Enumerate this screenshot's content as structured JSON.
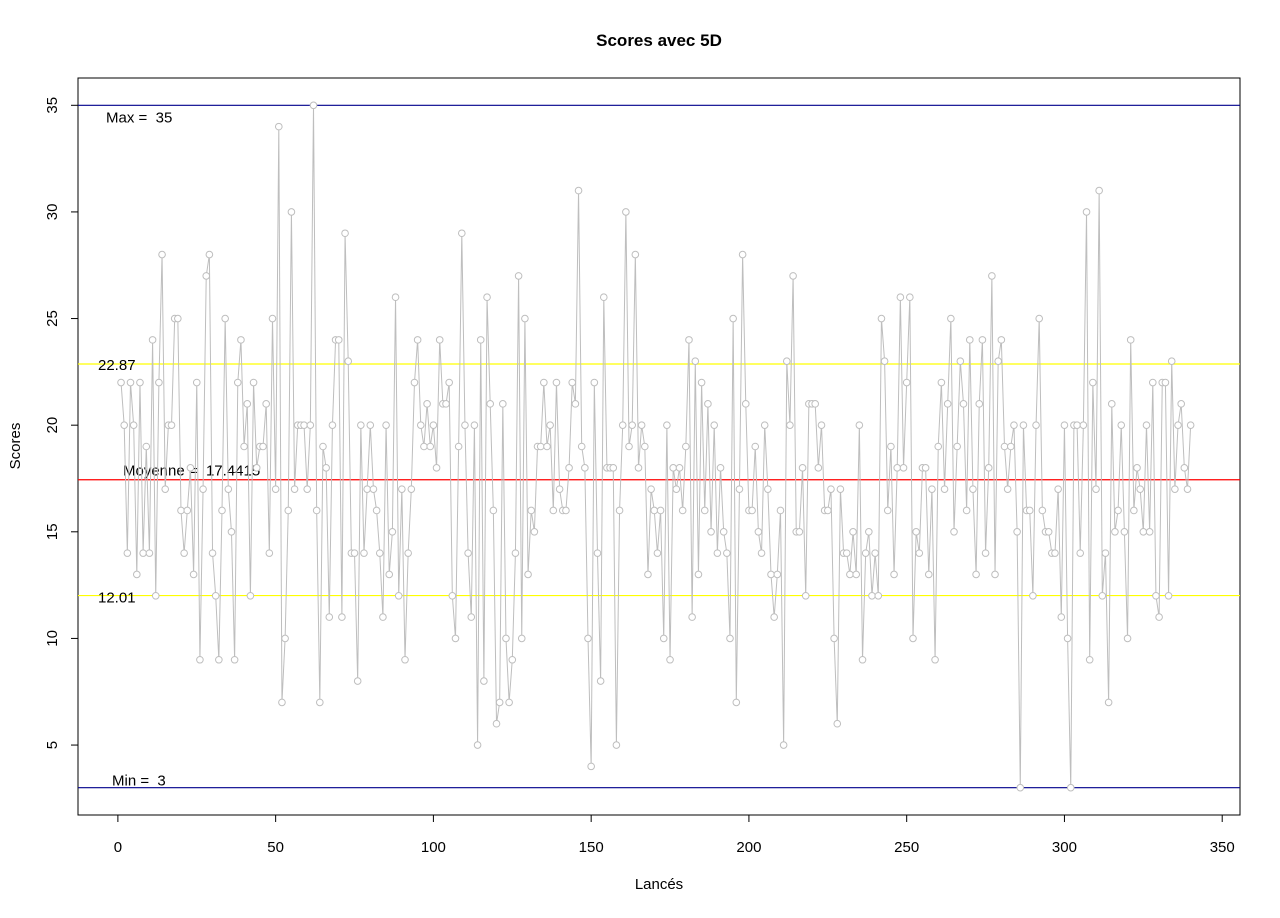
{
  "chart_data": {
    "type": "line",
    "title": "Scores avec 5D",
    "xlabel": "Lancés",
    "ylabel": "Scores",
    "color": "#bebebe",
    "x": [
      1,
      2,
      3,
      4,
      5,
      6,
      7,
      8,
      9,
      10,
      11,
      12,
      13,
      14,
      15,
      16,
      17,
      18,
      19,
      20,
      21,
      22,
      23,
      24,
      25,
      26,
      27,
      28,
      29,
      30,
      31,
      32,
      33,
      34,
      35,
      36,
      37,
      38,
      39,
      40,
      41,
      42,
      43,
      44,
      45,
      46,
      47,
      48,
      49,
      50,
      51,
      52,
      53,
      54,
      55,
      56,
      57,
      58,
      59,
      60,
      61,
      62,
      63,
      64,
      65,
      66,
      67,
      68,
      69,
      70,
      71,
      72,
      73,
      74,
      75,
      76,
      77,
      78,
      79,
      80,
      81,
      82,
      83,
      84,
      85,
      86,
      87,
      88,
      89,
      90,
      91,
      92,
      93,
      94,
      95,
      96,
      97,
      98,
      99,
      100,
      101,
      102,
      103,
      104,
      105,
      106,
      107,
      108,
      109,
      110,
      111,
      112,
      113,
      114,
      115,
      116,
      117,
      118,
      119,
      120,
      121,
      122,
      123,
      124,
      125,
      126,
      127,
      128,
      129,
      130,
      131,
      132,
      133,
      134,
      135,
      136,
      137,
      138,
      139,
      140,
      141,
      142,
      143,
      144,
      145,
      146,
      147,
      148,
      149,
      150,
      151,
      152,
      153,
      154,
      155,
      156,
      157,
      158,
      159,
      160,
      161,
      162,
      163,
      164,
      165,
      166,
      167,
      168,
      169,
      170,
      171,
      172,
      173,
      174,
      175,
      176,
      177,
      178,
      179,
      180,
      181,
      182,
      183,
      184,
      185,
      186,
      187,
      188,
      189,
      190,
      191,
      192,
      193,
      194,
      195,
      196,
      197,
      198,
      199,
      200,
      201,
      202,
      203,
      204,
      205,
      206,
      207,
      208,
      209,
      210,
      211,
      212,
      213,
      214,
      215,
      216,
      217,
      218,
      219,
      220,
      221,
      222,
      223,
      224,
      225,
      226,
      227,
      228,
      229,
      230,
      231,
      232,
      233,
      234,
      235,
      236,
      237,
      238,
      239,
      240,
      241,
      242,
      243,
      244,
      245,
      246,
      247,
      248,
      249,
      250,
      251,
      252,
      253,
      254,
      255,
      256,
      257,
      258,
      259,
      260,
      261,
      262,
      263,
      264,
      265,
      266,
      267,
      268,
      269,
      270,
      271,
      272,
      273,
      274,
      275,
      276,
      277,
      278,
      279,
      280,
      281,
      282,
      283,
      284,
      285,
      286,
      287,
      288,
      289,
      290,
      291,
      292,
      293,
      294,
      295,
      296,
      297,
      298,
      299,
      300,
      301,
      302,
      303,
      304,
      305,
      306,
      307,
      308,
      309,
      310,
      311,
      312,
      313,
      314,
      315,
      316,
      317,
      318,
      319,
      320,
      321,
      322,
      323,
      324,
      325,
      326,
      327,
      328,
      329,
      330,
      331,
      332,
      333,
      334,
      335,
      336,
      337,
      338,
      339,
      340
    ],
    "values": [
      22,
      20,
      14,
      22,
      20,
      13,
      22,
      14,
      19,
      14,
      24,
      12,
      22,
      28,
      17,
      20,
      20,
      25,
      25,
      16,
      14,
      16,
      18,
      13,
      22,
      9,
      17,
      27,
      28,
      14,
      12,
      9,
      16,
      25,
      17,
      15,
      9,
      22,
      24,
      19,
      21,
      12,
      22,
      18,
      19,
      19,
      21,
      14,
      25,
      17,
      34,
      7,
      10,
      16,
      30,
      17,
      20,
      20,
      20,
      17,
      20,
      35,
      16,
      7,
      19,
      18,
      11,
      20,
      24,
      24,
      11,
      29,
      23,
      14,
      14,
      8,
      20,
      14,
      17,
      20,
      17,
      16,
      14,
      11,
      20,
      13,
      15,
      26,
      12,
      17,
      9,
      14,
      17,
      22,
      24,
      20,
      19,
      21,
      19,
      20,
      18,
      24,
      21,
      21,
      22,
      12,
      10,
      19,
      29,
      20,
      14,
      11,
      20,
      5,
      24,
      8,
      26,
      21,
      16,
      6,
      7,
      21,
      10,
      7,
      9,
      14,
      27,
      10,
      25,
      13,
      16,
      15,
      19,
      19,
      22,
      19,
      20,
      16,
      22,
      17,
      16,
      16,
      18,
      22,
      21,
      31,
      19,
      18,
      10,
      4,
      22,
      14,
      8,
      26,
      18,
      18,
      18,
      5,
      16,
      20,
      30,
      19,
      20,
      28,
      18,
      20,
      19,
      13,
      17,
      16,
      14,
      16,
      10,
      20,
      9,
      18,
      17,
      18,
      16,
      19,
      24,
      11,
      23,
      13,
      22,
      16,
      21,
      15,
      20,
      14,
      18,
      15,
      14,
      10,
      25,
      7,
      17,
      28,
      21,
      16,
      16,
      19,
      15,
      14,
      20,
      17,
      13,
      11,
      13,
      16,
      5,
      23,
      20,
      27,
      15,
      15,
      18,
      12,
      21,
      21,
      21,
      18,
      20,
      16,
      16,
      17,
      10,
      6,
      17,
      14,
      14,
      13,
      15,
      13,
      20,
      9,
      14,
      15,
      12,
      14,
      12,
      25,
      23,
      16,
      19,
      13,
      18,
      26,
      18,
      22,
      26,
      10,
      15,
      14,
      18,
      18,
      13,
      17,
      9,
      19,
      22,
      17,
      21,
      25,
      15,
      19,
      23,
      21,
      16,
      24,
      17,
      13,
      21,
      24,
      14,
      18,
      27,
      13,
      23,
      24,
      19,
      17,
      19,
      20,
      15,
      3,
      20,
      16,
      16,
      12,
      20,
      25,
      16,
      15,
      15,
      14,
      14,
      17,
      11,
      20,
      10,
      3,
      20,
      20,
      14,
      20,
      30,
      9,
      22,
      17,
      31,
      12,
      14,
      7,
      21,
      15,
      16,
      20,
      15,
      10,
      24,
      16,
      18,
      17,
      15,
      20,
      15,
      22,
      12,
      11,
      22,
      22,
      12,
      23,
      17,
      20,
      21,
      18,
      17,
      20
    ],
    "xlim": [
      -12.64,
      355.64
    ],
    "ylim": [
      1.72,
      36.28
    ],
    "xticks": [
      0,
      50,
      100,
      150,
      200,
      250,
      300,
      350
    ],
    "yticks": [
      5,
      10,
      15,
      20,
      25,
      30,
      35
    ],
    "hlines": [
      {
        "value": 35,
        "color": "#00008b",
        "label": "Max =  35"
      },
      {
        "value": 3,
        "color": "#00008b",
        "label": "Min =  3"
      },
      {
        "value": 17.4415,
        "color": "#ff0000",
        "label": "Moyenne =  17.4415"
      },
      {
        "value": 22.87,
        "color": "#ffff00"
      },
      {
        "value": 12.01,
        "color": "#ffff00"
      }
    ]
  }
}
